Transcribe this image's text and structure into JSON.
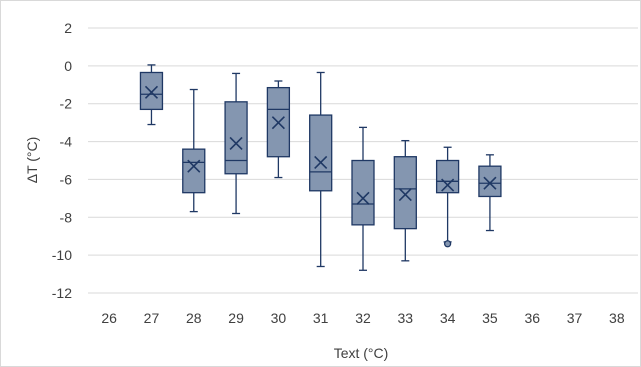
{
  "chart_data": {
    "type": "box",
    "xlabel": "Text (°C)",
    "ylabel": "ΔT (°C)",
    "ylim": [
      -12,
      2
    ],
    "y_ticks": [
      2,
      0,
      -2,
      -4,
      -6,
      -8,
      -10,
      -12
    ],
    "x_categories": [
      26,
      27,
      28,
      29,
      30,
      31,
      32,
      33,
      34,
      35,
      36,
      37,
      38
    ],
    "grid": true,
    "colors": {
      "box_fill": "#8496b0",
      "box_stroke": "#1f3864",
      "mean_marker": "#1f3864",
      "grid": "#d9d9d9"
    },
    "boxes": [
      {
        "x": 27,
        "min": -3.1,
        "q1": -2.3,
        "median": -1.5,
        "q3": -0.35,
        "max": 0.05,
        "mean": -1.4,
        "outliers": []
      },
      {
        "x": 28,
        "min": -7.7,
        "q1": -6.7,
        "median": -5.1,
        "q3": -4.4,
        "max": -1.25,
        "mean": -5.3,
        "outliers": []
      },
      {
        "x": 29,
        "min": -7.8,
        "q1": -5.7,
        "median": -5.0,
        "q3": -1.9,
        "max": -0.4,
        "mean": -4.1,
        "outliers": []
      },
      {
        "x": 30,
        "min": -5.9,
        "q1": -4.8,
        "median": -2.3,
        "q3": -1.15,
        "max": -0.8,
        "mean": -3.0,
        "outliers": []
      },
      {
        "x": 31,
        "min": -10.6,
        "q1": -6.6,
        "median": -5.6,
        "q3": -2.6,
        "max": -0.35,
        "mean": -5.1,
        "outliers": []
      },
      {
        "x": 32,
        "min": -10.8,
        "q1": -8.4,
        "median": -7.3,
        "q3": -5.0,
        "max": -3.25,
        "mean": -7.0,
        "outliers": []
      },
      {
        "x": 33,
        "min": -10.3,
        "q1": -8.6,
        "median": -6.5,
        "q3": -4.8,
        "max": -3.95,
        "mean": -6.8,
        "outliers": []
      },
      {
        "x": 34,
        "min": -9.3,
        "q1": -6.7,
        "median": -6.1,
        "q3": -5.0,
        "max": -4.3,
        "mean": -6.3,
        "outliers": [
          -9.4
        ]
      },
      {
        "x": 35,
        "min": -8.7,
        "q1": -6.9,
        "median": -6.2,
        "q3": -5.3,
        "max": -4.7,
        "mean": -6.2,
        "outliers": []
      }
    ]
  }
}
